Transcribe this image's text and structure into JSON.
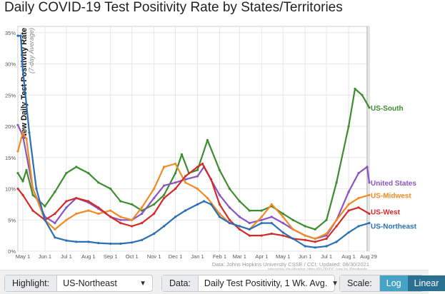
{
  "title": "Daily COVID-19 Test Positivity Rate by States/Territories",
  "chart_data": {
    "type": "line",
    "ylabel": "New Daily Test Positivity Rate",
    "ylabel_sub": "(7-day Average)",
    "ylim": [
      0,
      36
    ],
    "yticks": [
      0,
      5,
      10,
      15,
      20,
      25,
      30,
      35
    ],
    "ytick_labels": [
      "0%",
      "5%",
      "10%",
      "15%",
      "20%",
      "25%",
      "30%",
      "35%"
    ],
    "xlim": [
      "2020-04-24",
      "2021-08-30"
    ],
    "xticks": [
      "2020-05-01",
      "2020-06-01",
      "2020-07-01",
      "2020-08-01",
      "2020-09-01",
      "2020-10-01",
      "2020-11-01",
      "2020-12-01",
      "2021-01-01",
      "2021-02-01",
      "2021-03-01",
      "2021-04-01",
      "2021-05-01",
      "2021-06-01",
      "2021-07-01",
      "2021-08-01",
      "2021-08-29"
    ],
    "xtick_labels": [
      "May 1",
      "Jun 1",
      "Jul 1",
      "Aug 1",
      "Sep 1",
      "Oct 1",
      "Nov 1",
      "Dec 1",
      "Jan 1",
      "Feb 1",
      "Mar 1",
      "Apr 1",
      "May 1",
      "Jun 1",
      "Jul 1",
      "Aug 1",
      "Aug 29"
    ],
    "grid": true,
    "source_text": "Data: Johns Hopkins University CSSE / CCI; Updated: 08/30/2021",
    "credit_text": "Interactive Visualization: https://91-DIVOC.com/ by @profwade_",
    "series": [
      {
        "name": "US-South",
        "color": "#3d8c2f",
        "points": [
          [
            "2020-04-24",
            12.5
          ],
          [
            "2020-05-01",
            11.2
          ],
          [
            "2020-05-06",
            13.0
          ],
          [
            "2020-05-15",
            9.0
          ],
          [
            "2020-06-01",
            7.2
          ],
          [
            "2020-06-15",
            9.5
          ],
          [
            "2020-07-01",
            12.5
          ],
          [
            "2020-07-15",
            13.5
          ],
          [
            "2020-08-01",
            12.5
          ],
          [
            "2020-08-15",
            11.0
          ],
          [
            "2020-09-01",
            10.0
          ],
          [
            "2020-09-15",
            8.0
          ],
          [
            "2020-10-01",
            7.5
          ],
          [
            "2020-10-15",
            6.5
          ],
          [
            "2020-11-01",
            7.5
          ],
          [
            "2020-11-15",
            9.0
          ],
          [
            "2020-12-01",
            12.5
          ],
          [
            "2020-12-10",
            15.5
          ],
          [
            "2020-12-20",
            12.5
          ],
          [
            "2021-01-01",
            13.0
          ],
          [
            "2021-01-15",
            17.8
          ],
          [
            "2021-02-01",
            13.0
          ],
          [
            "2021-02-15",
            10.0
          ],
          [
            "2021-03-01",
            8.0
          ],
          [
            "2021-03-15",
            6.5
          ],
          [
            "2021-04-01",
            6.5
          ],
          [
            "2021-04-15",
            7.2
          ],
          [
            "2021-05-01",
            6.0
          ],
          [
            "2021-05-15",
            5.0
          ],
          [
            "2021-06-01",
            4.0
          ],
          [
            "2021-06-15",
            3.5
          ],
          [
            "2021-07-01",
            5.0
          ],
          [
            "2021-07-15",
            11.0
          ],
          [
            "2021-08-01",
            20.0
          ],
          [
            "2021-08-10",
            26.0
          ],
          [
            "2021-08-20",
            25.0
          ],
          [
            "2021-08-30",
            23.0
          ]
        ]
      },
      {
        "name": "United States",
        "color": "#8a55c0",
        "points": [
          [
            "2020-04-24",
            20.2
          ],
          [
            "2020-05-01",
            18.5
          ],
          [
            "2020-05-15",
            10.0
          ],
          [
            "2020-06-01",
            5.5
          ],
          [
            "2020-06-15",
            4.5
          ],
          [
            "2020-07-01",
            7.0
          ],
          [
            "2020-07-15",
            8.5
          ],
          [
            "2020-08-01",
            7.8
          ],
          [
            "2020-08-15",
            6.8
          ],
          [
            "2020-09-01",
            5.5
          ],
          [
            "2020-09-15",
            5.0
          ],
          [
            "2020-10-01",
            5.0
          ],
          [
            "2020-10-15",
            6.0
          ],
          [
            "2020-11-01",
            8.5
          ],
          [
            "2020-11-15",
            10.5
          ],
          [
            "2020-12-01",
            11.0
          ],
          [
            "2020-12-15",
            11.5
          ],
          [
            "2021-01-01",
            12.0
          ],
          [
            "2021-01-10",
            13.5
          ],
          [
            "2021-02-01",
            9.0
          ],
          [
            "2021-02-15",
            7.0
          ],
          [
            "2021-03-01",
            5.5
          ],
          [
            "2021-03-15",
            4.5
          ],
          [
            "2021-04-01",
            5.0
          ],
          [
            "2021-04-15",
            5.5
          ],
          [
            "2021-05-01",
            4.5
          ],
          [
            "2021-05-15",
            3.5
          ],
          [
            "2021-06-01",
            2.5
          ],
          [
            "2021-06-15",
            2.0
          ],
          [
            "2021-07-01",
            2.5
          ],
          [
            "2021-07-15",
            5.0
          ],
          [
            "2021-08-01",
            9.5
          ],
          [
            "2021-08-15",
            12.5
          ],
          [
            "2021-08-27",
            13.5
          ],
          [
            "2021-08-30",
            11.0
          ]
        ]
      },
      {
        "name": "US-Midwest",
        "color": "#f08a24",
        "points": [
          [
            "2020-04-24",
            16.0
          ],
          [
            "2020-05-01",
            19.0
          ],
          [
            "2020-05-06",
            18.0
          ],
          [
            "2020-05-15",
            10.0
          ],
          [
            "2020-06-01",
            5.0
          ],
          [
            "2020-06-15",
            3.5
          ],
          [
            "2020-07-01",
            5.0
          ],
          [
            "2020-07-15",
            6.0
          ],
          [
            "2020-08-01",
            6.5
          ],
          [
            "2020-08-15",
            6.0
          ],
          [
            "2020-09-01",
            6.5
          ],
          [
            "2020-09-15",
            5.5
          ],
          [
            "2020-10-01",
            5.0
          ],
          [
            "2020-10-15",
            7.0
          ],
          [
            "2020-11-01",
            10.0
          ],
          [
            "2020-11-15",
            13.5
          ],
          [
            "2020-12-01",
            14.0
          ],
          [
            "2020-12-15",
            11.0
          ],
          [
            "2021-01-01",
            10.0
          ],
          [
            "2021-01-15",
            8.5
          ],
          [
            "2021-02-01",
            6.0
          ],
          [
            "2021-02-15",
            4.5
          ],
          [
            "2021-03-01",
            4.0
          ],
          [
            "2021-03-15",
            3.5
          ],
          [
            "2021-04-01",
            5.5
          ],
          [
            "2021-04-15",
            7.5
          ],
          [
            "2021-05-01",
            5.5
          ],
          [
            "2021-05-15",
            3.5
          ],
          [
            "2021-06-01",
            2.5
          ],
          [
            "2021-06-15",
            2.0
          ],
          [
            "2021-07-01",
            2.8
          ],
          [
            "2021-07-15",
            5.0
          ],
          [
            "2021-08-01",
            7.5
          ],
          [
            "2021-08-15",
            8.5
          ],
          [
            "2021-08-30",
            9.0
          ]
        ]
      },
      {
        "name": "US-West",
        "color": "#d42a2a",
        "points": [
          [
            "2020-04-24",
            10.0
          ],
          [
            "2020-05-01",
            9.0
          ],
          [
            "2020-05-15",
            6.5
          ],
          [
            "2020-06-01",
            5.0
          ],
          [
            "2020-06-15",
            6.0
          ],
          [
            "2020-07-01",
            8.0
          ],
          [
            "2020-07-15",
            8.5
          ],
          [
            "2020-08-01",
            8.0
          ],
          [
            "2020-08-15",
            7.0
          ],
          [
            "2020-09-01",
            5.5
          ],
          [
            "2020-09-15",
            4.5
          ],
          [
            "2020-10-01",
            4.0
          ],
          [
            "2020-10-15",
            4.5
          ],
          [
            "2020-11-01",
            6.0
          ],
          [
            "2020-11-15",
            8.5
          ],
          [
            "2020-12-01",
            10.0
          ],
          [
            "2020-12-15",
            12.0
          ],
          [
            "2021-01-01",
            13.5
          ],
          [
            "2021-01-08",
            14.0
          ],
          [
            "2021-01-20",
            11.5
          ],
          [
            "2021-02-01",
            7.5
          ],
          [
            "2021-02-15",
            5.0
          ],
          [
            "2021-03-01",
            3.5
          ],
          [
            "2021-03-15",
            2.5
          ],
          [
            "2021-04-01",
            2.5
          ],
          [
            "2021-04-15",
            2.8
          ],
          [
            "2021-05-01",
            2.5
          ],
          [
            "2021-05-15",
            2.0
          ],
          [
            "2021-06-01",
            1.8
          ],
          [
            "2021-06-15",
            1.5
          ],
          [
            "2021-07-01",
            2.0
          ],
          [
            "2021-07-15",
            4.0
          ],
          [
            "2021-08-01",
            6.5
          ],
          [
            "2021-08-15",
            7.0
          ],
          [
            "2021-08-30",
            6.0
          ]
        ]
      },
      {
        "name": "US-Northeast",
        "color": "#2a6fb5",
        "points": [
          [
            "2020-04-24",
            34.5
          ],
          [
            "2020-04-28",
            34.5
          ],
          [
            "2020-05-01",
            29.0
          ],
          [
            "2020-05-10",
            19.0
          ],
          [
            "2020-05-20",
            10.0
          ],
          [
            "2020-06-01",
            5.0
          ],
          [
            "2020-06-15",
            2.2
          ],
          [
            "2020-07-01",
            1.7
          ],
          [
            "2020-07-15",
            1.5
          ],
          [
            "2020-08-01",
            1.5
          ],
          [
            "2020-08-15",
            1.3
          ],
          [
            "2020-09-01",
            1.2
          ],
          [
            "2020-09-15",
            1.2
          ],
          [
            "2020-10-01",
            1.4
          ],
          [
            "2020-10-15",
            1.8
          ],
          [
            "2020-11-01",
            2.8
          ],
          [
            "2020-11-15",
            4.0
          ],
          [
            "2020-12-01",
            5.5
          ],
          [
            "2020-12-15",
            6.5
          ],
          [
            "2021-01-01",
            7.5
          ],
          [
            "2021-01-10",
            8.0
          ],
          [
            "2021-01-20",
            7.5
          ],
          [
            "2021-02-01",
            5.5
          ],
          [
            "2021-02-15",
            4.5
          ],
          [
            "2021-03-01",
            4.0
          ],
          [
            "2021-03-15",
            3.5
          ],
          [
            "2021-04-01",
            4.5
          ],
          [
            "2021-04-15",
            4.5
          ],
          [
            "2021-05-01",
            3.0
          ],
          [
            "2021-05-15",
            2.0
          ],
          [
            "2021-06-01",
            0.8
          ],
          [
            "2021-06-15",
            0.6
          ],
          [
            "2021-07-01",
            0.8
          ],
          [
            "2021-07-15",
            1.5
          ],
          [
            "2021-08-01",
            3.0
          ],
          [
            "2021-08-15",
            4.0
          ],
          [
            "2021-08-30",
            4.5
          ]
        ]
      }
    ]
  },
  "controls": {
    "highlight_label": "Highlight:",
    "highlight_value": "US-Northeast",
    "data_label": "Data:",
    "data_value": "Daily Test Positivity, 1 Wk. Avg.",
    "scale_label": "Scale:",
    "log_label": "Log",
    "linear_label": "Linear"
  }
}
